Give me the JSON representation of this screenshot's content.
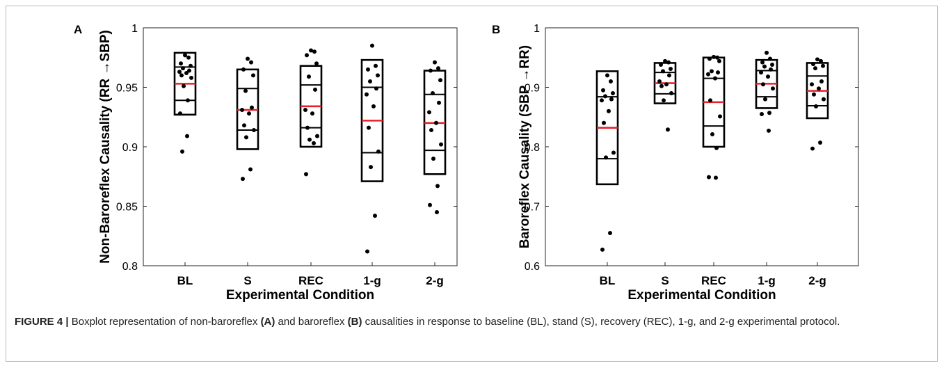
{
  "caption": {
    "label": "FIGURE 4 |",
    "part1": "Boxplot representation of non-baroreflex ",
    "bold_a": "(A)",
    "part2": " and baroreflex ",
    "bold_b": "(B)",
    "part3": " causalities in response to baseline (BL), stand (S), recovery (REC), 1-g, and 2-g experimental protocol."
  },
  "colors": {
    "median": "#e8202a",
    "box": "#000000",
    "point": "#000000",
    "frame": "#b7b7b7"
  },
  "chart_data": [
    {
      "panel": "A",
      "type": "box",
      "categories": [
        "BL",
        "S",
        "REC",
        "1-g",
        "2-g"
      ],
      "xlabel": "Experimental Condition",
      "ylabel": "Non-Baroreflex Causality (RR →SBP)",
      "ylim": [
        0.8,
        1.0
      ],
      "yticks": [
        0.8,
        0.85,
        0.9,
        0.95,
        1
      ],
      "ytick_labels": [
        "0.8",
        "0.85",
        "0.9",
        "0.95",
        "1"
      ],
      "grid": false,
      "boxes": [
        {
          "lower": 0.927,
          "q1": 0.939,
          "median": 0.953,
          "q3": 0.967,
          "upper": 0.979
        },
        {
          "lower": 0.898,
          "q1": 0.914,
          "median": 0.931,
          "q3": 0.949,
          "upper": 0.965
        },
        {
          "lower": 0.9,
          "q1": 0.916,
          "median": 0.934,
          "q3": 0.952,
          "upper": 0.968
        },
        {
          "lower": 0.871,
          "q1": 0.895,
          "median": 0.922,
          "q3": 0.95,
          "upper": 0.973
        },
        {
          "lower": 0.877,
          "q1": 0.897,
          "median": 0.92,
          "q3": 0.944,
          "upper": 0.964
        }
      ],
      "points": [
        [
          0.977,
          0.975,
          0.97,
          0.968,
          0.966,
          0.964,
          0.963,
          0.962,
          0.96,
          0.958,
          0.951,
          0.939,
          0.928,
          0.909,
          0.896
        ],
        [
          0.974,
          0.971,
          0.965,
          0.96,
          0.947,
          0.933,
          0.931,
          0.928,
          0.918,
          0.914,
          0.908,
          0.881,
          0.873
        ],
        [
          0.981,
          0.98,
          0.977,
          0.97,
          0.959,
          0.948,
          0.931,
          0.928,
          0.916,
          0.909,
          0.906,
          0.903,
          0.877
        ],
        [
          0.985,
          0.968,
          0.965,
          0.96,
          0.955,
          0.949,
          0.944,
          0.934,
          0.916,
          0.896,
          0.883,
          0.842,
          0.812
        ],
        [
          0.971,
          0.966,
          0.964,
          0.956,
          0.945,
          0.937,
          0.929,
          0.92,
          0.914,
          0.902,
          0.89,
          0.867,
          0.851,
          0.845
        ]
      ]
    },
    {
      "panel": "B",
      "type": "box",
      "categories": [
        "BL",
        "S",
        "REC",
        "1-g",
        "2-g"
      ],
      "xlabel": "Experimental Condition",
      "ylabel": "Baroreflex Causality (SBP →RR)",
      "ylim": [
        0.6,
        1.0
      ],
      "yticks": [
        0.6,
        0.7,
        0.8,
        0.9,
        1
      ],
      "ytick_labels": [
        "0.6",
        "0.7",
        "0.8",
        "0.9",
        "1"
      ],
      "grid": false,
      "boxes": [
        {
          "lower": 0.737,
          "q1": 0.78,
          "median": 0.832,
          "q3": 0.884,
          "upper": 0.927
        },
        {
          "lower": 0.873,
          "q1": 0.889,
          "median": 0.907,
          "q3": 0.925,
          "upper": 0.941
        },
        {
          "lower": 0.8,
          "q1": 0.835,
          "median": 0.875,
          "q3": 0.915,
          "upper": 0.95
        },
        {
          "lower": 0.865,
          "q1": 0.884,
          "median": 0.906,
          "q3": 0.928,
          "upper": 0.946
        },
        {
          "lower": 0.848,
          "q1": 0.869,
          "median": 0.894,
          "q3": 0.919,
          "upper": 0.941
        }
      ],
      "points": [
        [
          0.92,
          0.91,
          0.895,
          0.89,
          0.885,
          0.88,
          0.878,
          0.86,
          0.84,
          0.79,
          0.782,
          0.655,
          0.627
        ],
        [
          0.944,
          0.942,
          0.938,
          0.931,
          0.927,
          0.92,
          0.91,
          0.905,
          0.902,
          0.89,
          0.878,
          0.829
        ],
        [
          0.951,
          0.95,
          0.948,
          0.944,
          0.927,
          0.925,
          0.922,
          0.915,
          0.878,
          0.851,
          0.821,
          0.798,
          0.749,
          0.748
        ],
        [
          0.958,
          0.948,
          0.942,
          0.938,
          0.935,
          0.93,
          0.925,
          0.918,
          0.905,
          0.898,
          0.88,
          0.857,
          0.855,
          0.827
        ],
        [
          0.947,
          0.944,
          0.939,
          0.936,
          0.932,
          0.91,
          0.905,
          0.898,
          0.888,
          0.88,
          0.868,
          0.807,
          0.797
        ]
      ]
    }
  ]
}
